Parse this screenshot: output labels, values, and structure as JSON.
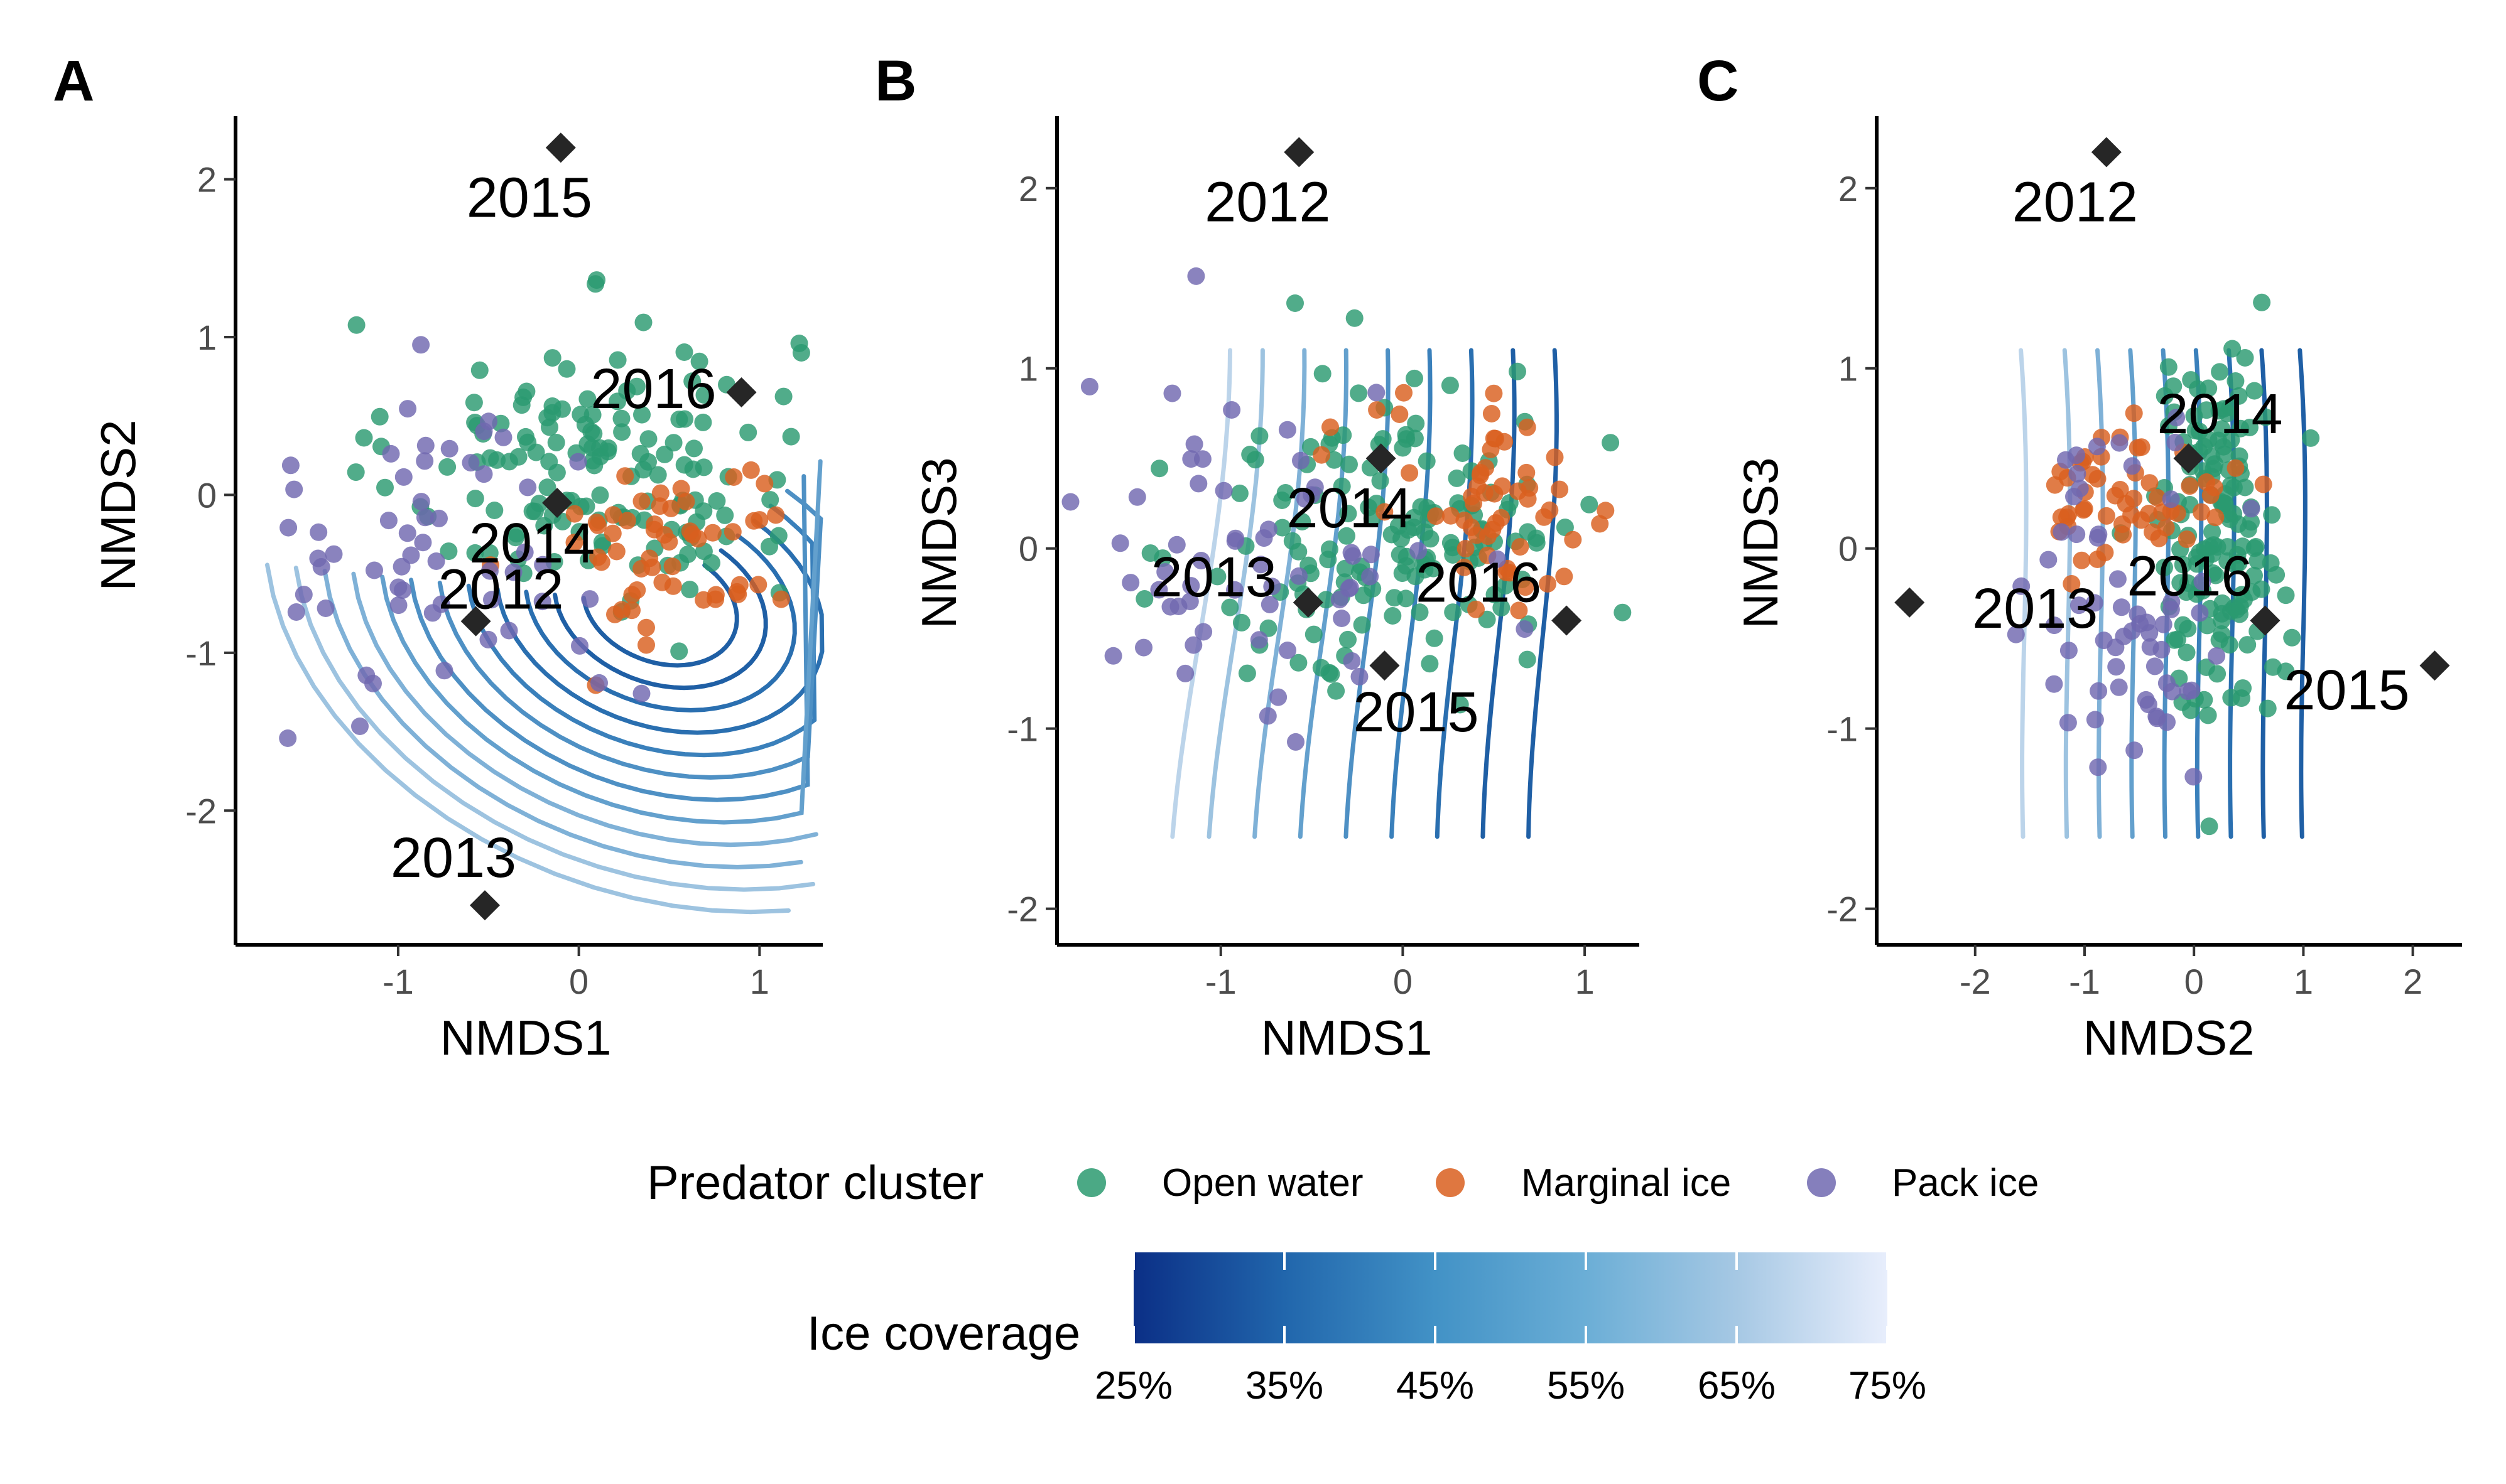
{
  "chart_data": [
    {
      "panel": "A",
      "type": "scatter",
      "xlabel": "NMDS1",
      "ylabel": "NMDS2",
      "xlim": [
        -1.9,
        1.35
      ],
      "ylim": [
        -2.85,
        2.4
      ],
      "xticks": [
        -1,
        0,
        1
      ],
      "yticks": [
        -2,
        -1,
        0,
        1,
        2
      ],
      "xtick_labels": [
        "-1",
        "0",
        "1"
      ],
      "ytick_labels": [
        "-2",
        "-1",
        "0",
        "1",
        "2"
      ],
      "years": [
        {
          "label": "2015",
          "x": -0.1,
          "y": 2.2
        },
        {
          "label": "2016",
          "x": 0.9,
          "y": 0.65
        },
        {
          "label": "2014",
          "x": -0.12,
          "y": -0.05
        },
        {
          "label": "2012",
          "x": -0.57,
          "y": -0.8
        },
        {
          "label": "2013",
          "x": -0.52,
          "y": -2.6
        }
      ],
      "clusters": {
        "open_water": {
          "center": [
            0.1,
            0.2
          ],
          "spread": [
            0.55,
            0.45
          ],
          "n": 150
        },
        "marginal_ice": {
          "center": [
            0.5,
            -0.3
          ],
          "spread": [
            0.35,
            0.35
          ],
          "n": 55
        },
        "pack_ice": {
          "center": [
            -0.8,
            -0.4
          ],
          "spread": [
            0.55,
            0.5
          ],
          "n": 60
        }
      }
    },
    {
      "panel": "B",
      "type": "scatter",
      "xlabel": "NMDS1",
      "ylabel": "NMDS3",
      "xlim": [
        -1.9,
        1.3
      ],
      "ylim": [
        -2.2,
        2.4
      ],
      "xticks": [
        -1,
        0,
        1
      ],
      "yticks": [
        -2,
        -1,
        0,
        1,
        2
      ],
      "xtick_labels": [
        "-1",
        "0",
        "1"
      ],
      "ytick_labels": [
        "-2",
        "-1",
        "0",
        "1",
        "2"
      ],
      "years": [
        {
          "label": "2012",
          "x": -0.57,
          "y": 2.2
        },
        {
          "label": "2014",
          "x": -0.12,
          "y": 0.5
        },
        {
          "label": "2013",
          "x": -0.52,
          "y": -0.3
        },
        {
          "label": "2016",
          "x": 0.9,
          "y": -0.4
        },
        {
          "label": "2015",
          "x": -0.1,
          "y": -0.65
        }
      ],
      "clusters": {
        "open_water": {
          "center": [
            0.0,
            0.1
          ],
          "spread": [
            0.55,
            0.45
          ],
          "n": 150
        },
        "marginal_ice": {
          "center": [
            0.5,
            0.2
          ],
          "spread": [
            0.35,
            0.3
          ],
          "n": 55
        },
        "pack_ice": {
          "center": [
            -0.8,
            0.0
          ],
          "spread": [
            0.5,
            0.5
          ],
          "n": 60
        }
      }
    },
    {
      "panel": "C",
      "type": "scatter",
      "xlabel": "NMDS2",
      "ylabel": "NMDS3",
      "xlim": [
        -2.9,
        2.45
      ],
      "ylim": [
        -2.2,
        2.4
      ],
      "xticks": [
        -2,
        -1,
        0,
        1,
        2
      ],
      "yticks": [
        -2,
        -1,
        0,
        1,
        2
      ],
      "xtick_labels": [
        "-2",
        "-1",
        "0",
        "1",
        "2"
      ],
      "ytick_labels": [
        "-2",
        "-1",
        "0",
        "1",
        "2"
      ],
      "years": [
        {
          "label": "2012",
          "x": -0.8,
          "y": 2.2
        },
        {
          "label": "2014",
          "x": -0.05,
          "y": 0.5
        },
        {
          "label": "2013",
          "x": -2.6,
          "y": -0.3
        },
        {
          "label": "2016",
          "x": 0.65,
          "y": -0.4
        },
        {
          "label": "2015",
          "x": 2.2,
          "y": -0.65
        }
      ],
      "clusters": {
        "open_water": {
          "center": [
            0.2,
            0.1
          ],
          "spread": [
            0.3,
            0.5
          ],
          "n": 150
        },
        "marginal_ice": {
          "center": [
            -0.5,
            0.3
          ],
          "spread": [
            0.4,
            0.2
          ],
          "n": 55
        },
        "pack_ice": {
          "center": [
            -0.6,
            -0.3
          ],
          "spread": [
            0.5,
            0.5
          ],
          "n": 60
        }
      }
    }
  ],
  "legend": {
    "cluster_title": "Predator cluster",
    "clusters": [
      {
        "key": "open_water",
        "label": "Open water",
        "color": "#2b9a70"
      },
      {
        "key": "marginal_ice",
        "label": "Marginal ice",
        "color": "#d95f1e"
      },
      {
        "key": "pack_ice",
        "label": "Pack ice",
        "color": "#7068b0"
      }
    ],
    "colorbar_title": "Ice coverage",
    "colorbar_ticks": [
      "25%",
      "35%",
      "45%",
      "55%",
      "65%",
      "75%"
    ],
    "colorbar_colors": [
      "#0b2f86",
      "#2166ac",
      "#4292c6",
      "#6baed6",
      "#a6c8e4",
      "#e8eefc"
    ]
  }
}
